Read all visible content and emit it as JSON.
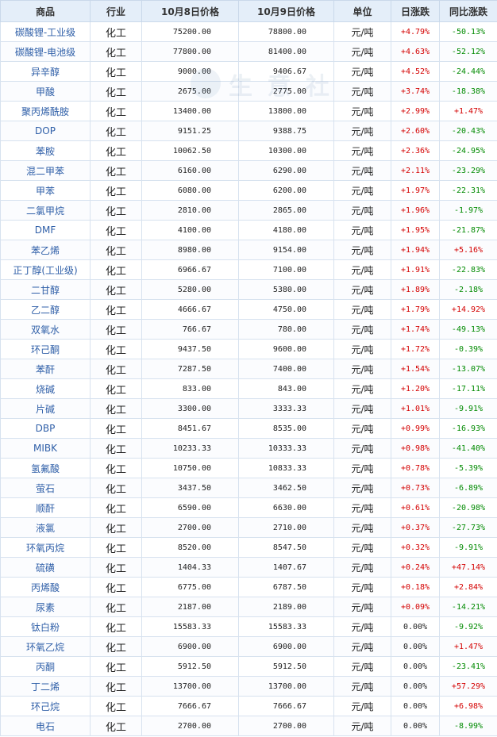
{
  "table": {
    "headers": [
      "商品",
      "行业",
      "10月8日价格",
      "10月9日价格",
      "单位",
      "日涨跌",
      "同比涨跌"
    ],
    "rows": [
      [
        "碳酸锂-工业级",
        "化工",
        "75200.00",
        "78800.00",
        "元/吨",
        "+4.79%",
        "-50.13%"
      ],
      [
        "碳酸锂-电池级",
        "化工",
        "77800.00",
        "81400.00",
        "元/吨",
        "+4.63%",
        "-52.12%"
      ],
      [
        "异辛醇",
        "化工",
        "9000.00",
        "9406.67",
        "元/吨",
        "+4.52%",
        "-24.44%"
      ],
      [
        "甲酸",
        "化工",
        "2675.00",
        "2775.00",
        "元/吨",
        "+3.74%",
        "-18.38%"
      ],
      [
        "聚丙烯酰胺",
        "化工",
        "13400.00",
        "13800.00",
        "元/吨",
        "+2.99%",
        "+1.47%"
      ],
      [
        "DOP",
        "化工",
        "9151.25",
        "9388.75",
        "元/吨",
        "+2.60%",
        "-20.43%"
      ],
      [
        "苯胺",
        "化工",
        "10062.50",
        "10300.00",
        "元/吨",
        "+2.36%",
        "-24.95%"
      ],
      [
        "混二甲苯",
        "化工",
        "6160.00",
        "6290.00",
        "元/吨",
        "+2.11%",
        "-23.29%"
      ],
      [
        "甲苯",
        "化工",
        "6080.00",
        "6200.00",
        "元/吨",
        "+1.97%",
        "-22.31%"
      ],
      [
        "二氯甲烷",
        "化工",
        "2810.00",
        "2865.00",
        "元/吨",
        "+1.96%",
        "-1.97%"
      ],
      [
        "DMF",
        "化工",
        "4100.00",
        "4180.00",
        "元/吨",
        "+1.95%",
        "-21.87%"
      ],
      [
        "苯乙烯",
        "化工",
        "8980.00",
        "9154.00",
        "元/吨",
        "+1.94%",
        "+5.16%"
      ],
      [
        "正丁醇(工业级)",
        "化工",
        "6966.67",
        "7100.00",
        "元/吨",
        "+1.91%",
        "-22.83%"
      ],
      [
        "二甘醇",
        "化工",
        "5280.00",
        "5380.00",
        "元/吨",
        "+1.89%",
        "-2.18%"
      ],
      [
        "乙二醇",
        "化工",
        "4666.67",
        "4750.00",
        "元/吨",
        "+1.79%",
        "+14.92%"
      ],
      [
        "双氧水",
        "化工",
        "766.67",
        "780.00",
        "元/吨",
        "+1.74%",
        "-49.13%"
      ],
      [
        "环己酮",
        "化工",
        "9437.50",
        "9600.00",
        "元/吨",
        "+1.72%",
        "-0.39%"
      ],
      [
        "苯酐",
        "化工",
        "7287.50",
        "7400.00",
        "元/吨",
        "+1.54%",
        "-13.07%"
      ],
      [
        "烧碱",
        "化工",
        "833.00",
        "843.00",
        "元/吨",
        "+1.20%",
        "-17.11%"
      ],
      [
        "片碱",
        "化工",
        "3300.00",
        "3333.33",
        "元/吨",
        "+1.01%",
        "-9.91%"
      ],
      [
        "DBP",
        "化工",
        "8451.67",
        "8535.00",
        "元/吨",
        "+0.99%",
        "-16.93%"
      ],
      [
        "MIBK",
        "化工",
        "10233.33",
        "10333.33",
        "元/吨",
        "+0.98%",
        "-41.40%"
      ],
      [
        "氢氟酸",
        "化工",
        "10750.00",
        "10833.33",
        "元/吨",
        "+0.78%",
        "-5.39%"
      ],
      [
        "萤石",
        "化工",
        "3437.50",
        "3462.50",
        "元/吨",
        "+0.73%",
        "-6.89%"
      ],
      [
        "顺酐",
        "化工",
        "6590.00",
        "6630.00",
        "元/吨",
        "+0.61%",
        "-20.98%"
      ],
      [
        "液氯",
        "化工",
        "2700.00",
        "2710.00",
        "元/吨",
        "+0.37%",
        "-27.73%"
      ],
      [
        "环氧丙烷",
        "化工",
        "8520.00",
        "8547.50",
        "元/吨",
        "+0.32%",
        "-9.91%"
      ],
      [
        "硫磺",
        "化工",
        "1404.33",
        "1407.67",
        "元/吨",
        "+0.24%",
        "+47.14%"
      ],
      [
        "丙烯酸",
        "化工",
        "6775.00",
        "6787.50",
        "元/吨",
        "+0.18%",
        "+2.84%"
      ],
      [
        "尿素",
        "化工",
        "2187.00",
        "2189.00",
        "元/吨",
        "+0.09%",
        "-14.21%"
      ],
      [
        "钛白粉",
        "化工",
        "15583.33",
        "15583.33",
        "元/吨",
        "0.00%",
        "-9.92%"
      ],
      [
        "环氧乙烷",
        "化工",
        "6900.00",
        "6900.00",
        "元/吨",
        "0.00%",
        "+1.47%"
      ],
      [
        "丙酮",
        "化工",
        "5912.50",
        "5912.50",
        "元/吨",
        "0.00%",
        "-23.41%"
      ],
      [
        "丁二烯",
        "化工",
        "13700.00",
        "13700.00",
        "元/吨",
        "0.00%",
        "+57.29%"
      ],
      [
        "环己烷",
        "化工",
        "7666.67",
        "7666.67",
        "元/吨",
        "0.00%",
        "+6.98%"
      ],
      [
        "电石",
        "化工",
        "2700.00",
        "2700.00",
        "元/吨",
        "0.00%",
        "-8.99%"
      ]
    ]
  },
  "watermark": {
    "text": "生 意 社"
  },
  "colors": {
    "up": "#d40000",
    "down": "#008a00",
    "header_bg": "#e4eef9",
    "name_link": "#2f5fa8"
  }
}
